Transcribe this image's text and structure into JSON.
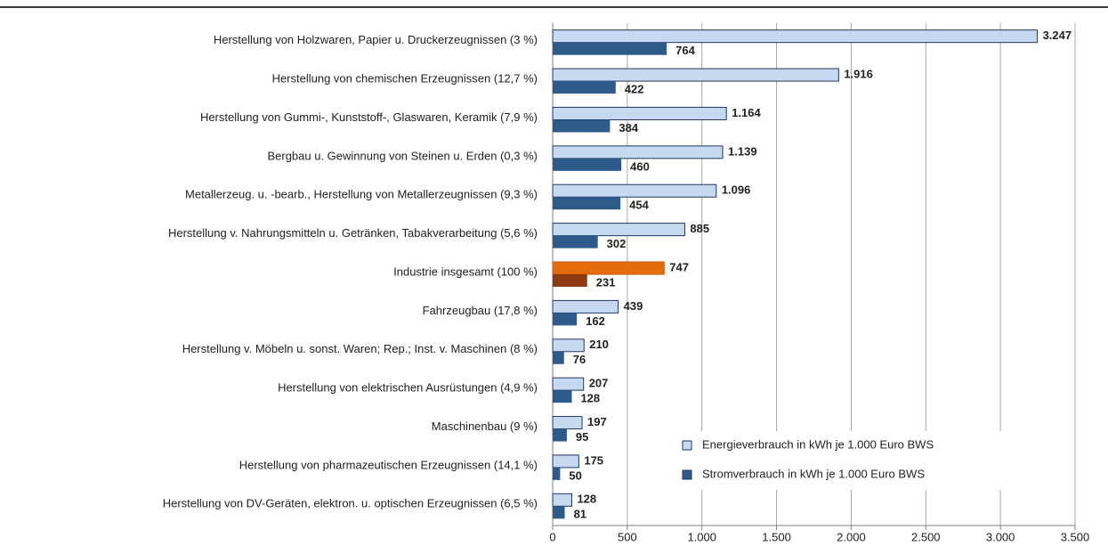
{
  "chart_data": {
    "type": "barh",
    "categories": [
      "Herstellung von Holzwaren, Papier u. Druckerzeugnissen (3 %)",
      "Herstellung von chemischen Erzeugnissen (12,7 %)",
      "Herstellung von Gummi-, Kunststoff-, Glaswaren, Keramik (7,9 %)",
      "Bergbau u. Gewinnung von Steinen u. Erden (0,3 %)",
      "Metallerzeug. u. -bearb., Herstellung von Metallerzeugnissen (9,3 %)",
      "Herstellung v. Nahrungsmitteln u. Getränken, Tabakverarbeitung (5,6 %)",
      "Industrie insgesamt (100 %)",
      "Fahrzeugbau (17,8 %)",
      "Herstellung v. Möbeln u. sonst. Waren; Rep.; Inst. v. Maschinen (8 %)",
      "Herstellung von elektrischen Ausrüstungen (4,9 %)",
      "Maschinenbau (9 %)",
      "Herstellung von pharmazeutischen Erzeugnissen (14,1 %)",
      "Herstellung von DV-Geräten, elektron. u. optischen Erzeugnissen (6,5 %)"
    ],
    "series": [
      {
        "name": "Energieverbrauch in kWh je 1.000 Euro BWS",
        "color": "#c6d9f1",
        "edge": "#1f3864",
        "label_color": "#6fa8dc",
        "values": [
          3247,
          1916,
          1164,
          1139,
          1096,
          885,
          747,
          439,
          210,
          207,
          197,
          175,
          128
        ],
        "value_labels": [
          "3.247",
          "1.916",
          "1.164",
          "1.139",
          "1.096",
          "885",
          "747",
          "439",
          "210",
          "207",
          "197",
          "175",
          "128"
        ],
        "colors": [
          "#c6d9f1",
          "#c6d9f1",
          "#c6d9f1",
          "#c6d9f1",
          "#c6d9f1",
          "#c6d9f1",
          "#e46c0a",
          "#c6d9f1",
          "#c6d9f1",
          "#c6d9f1",
          "#c6d9f1",
          "#c6d9f1",
          "#c6d9f1"
        ],
        "label_colors": [
          "#6fa8dc",
          "#6fa8dc",
          "#6fa8dc",
          "#6fa8dc",
          "#6fa8dc",
          "#6fa8dc",
          "#c55a11",
          "#6fa8dc",
          "#6fa8dc",
          "#6fa8dc",
          "#6fa8dc",
          "#6fa8dc",
          "#6fa8dc"
        ]
      },
      {
        "name": "Stromverbrauch in kWh je 1.000 Euro BWS",
        "color": "#2e5a8a",
        "edge": "#1f3864",
        "label_color": "#1f3864",
        "values": [
          764,
          422,
          384,
          460,
          454,
          302,
          231,
          162,
          76,
          128,
          95,
          50,
          81
        ],
        "colors": [
          "#2e5a8a",
          "#2e5a8a",
          "#2e5a8a",
          "#2e5a8a",
          "#2e5a8a",
          "#2e5a8a",
          "#8b3a12",
          "#2e5a8a",
          "#2e5a8a",
          "#2e5a8a",
          "#2e5a8a",
          "#2e5a8a",
          "#2e5a8a"
        ],
        "label_colors": [
          "#1f3864",
          "#1f3864",
          "#1f3864",
          "#1f3864",
          "#1f3864",
          "#1f3864",
          "#7b3410",
          "#1f3864",
          "#1f3864",
          "#1f3864",
          "#1f3864",
          "#1f3864",
          "#1f3864"
        ]
      }
    ],
    "xlim": [
      0,
      3500
    ],
    "xticks": [
      0,
      500,
      {
        "value": 1000,
        "label": "1.000"
      },
      {
        "value": 1500,
        "label": "1.500"
      },
      {
        "value": 2000,
        "label": "2.000"
      },
      {
        "value": 2500,
        "label": "2.500"
      },
      {
        "value": 3000,
        "label": "3.000"
      },
      {
        "value": 3500,
        "label": "3.500"
      }
    ],
    "grid": true,
    "legend": "lower right"
  }
}
